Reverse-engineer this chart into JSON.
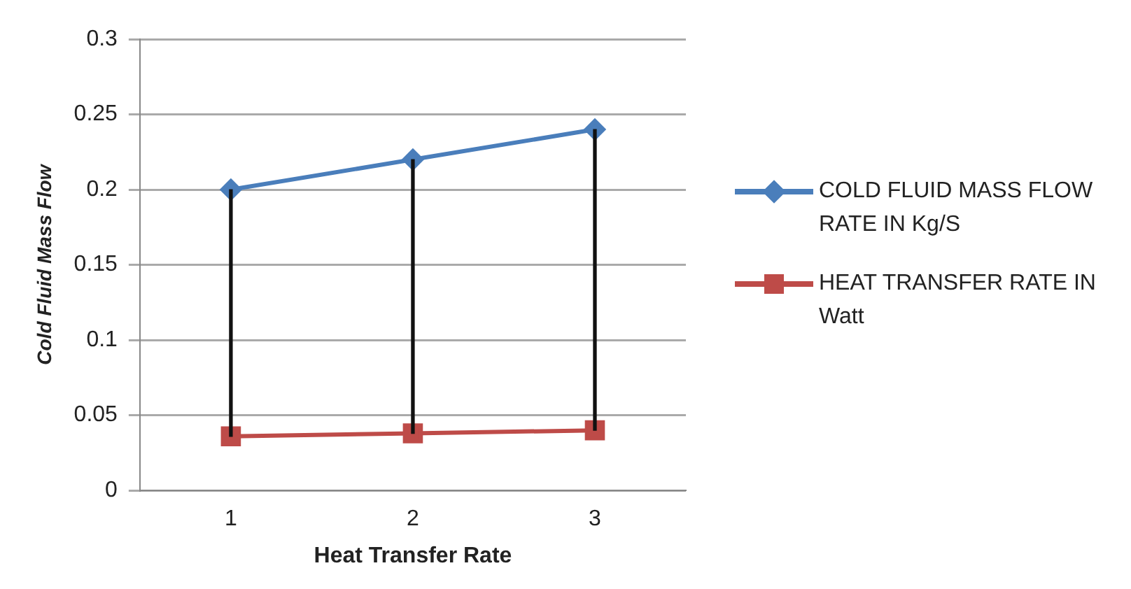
{
  "chart_data": {
    "type": "line",
    "xlabel": "Heat Transfer Rate",
    "ylabel": "Cold Fluid Mass Flow",
    "categories": [
      "1",
      "2",
      "3"
    ],
    "series": [
      {
        "name": "COLD FLUID MASS FLOW RATE IN Kg/S",
        "color": "#4a7ebb",
        "values": [
          0.2,
          0.22,
          0.24
        ],
        "marker": "diamond"
      },
      {
        "name": "HEAT TRANSFER RATE IN Watt",
        "color": "#be4b48",
        "values": [
          0.036,
          0.038,
          0.04
        ],
        "marker": "square"
      },
      {
        "type": "bar",
        "color": "#111111",
        "base": [
          0.036,
          0.038,
          0.04
        ],
        "values": [
          0.164,
          0.182,
          0.2
        ]
      }
    ],
    "ylim": [
      0,
      0.3
    ],
    "yticks": [
      0,
      0.05,
      0.1,
      0.15,
      0.2,
      0.25,
      0.3
    ],
    "grid": "y",
    "legend": "right"
  }
}
